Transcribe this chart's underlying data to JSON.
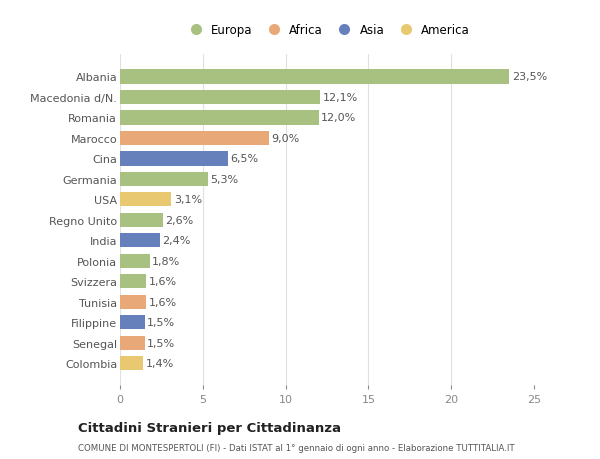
{
  "categories": [
    "Albania",
    "Macedonia d/N.",
    "Romania",
    "Marocco",
    "Cina",
    "Germania",
    "USA",
    "Regno Unito",
    "India",
    "Polonia",
    "Svizzera",
    "Tunisia",
    "Filippine",
    "Senegal",
    "Colombia"
  ],
  "values": [
    23.5,
    12.1,
    12.0,
    9.0,
    6.5,
    5.3,
    3.1,
    2.6,
    2.4,
    1.8,
    1.6,
    1.6,
    1.5,
    1.5,
    1.4
  ],
  "labels": [
    "23,5%",
    "12,1%",
    "12,0%",
    "9,0%",
    "6,5%",
    "5,3%",
    "3,1%",
    "2,6%",
    "2,4%",
    "1,8%",
    "1,6%",
    "1,6%",
    "1,5%",
    "1,5%",
    "1,4%"
  ],
  "continents": [
    "Europa",
    "Europa",
    "Europa",
    "Africa",
    "Asia",
    "Europa",
    "America",
    "Europa",
    "Asia",
    "Europa",
    "Europa",
    "Africa",
    "Asia",
    "Africa",
    "America"
  ],
  "continent_colors": {
    "Europa": "#a8c080",
    "Africa": "#e8a878",
    "Asia": "#6680bb",
    "America": "#e8c870"
  },
  "legend_order": [
    "Europa",
    "Africa",
    "Asia",
    "America"
  ],
  "title": "Cittadini Stranieri per Cittadinanza",
  "subtitle": "COMUNE DI MONTESPERTOLI (FI) - Dati ISTAT al 1° gennaio di ogni anno - Elaborazione TUTTITALIA.IT",
  "xlim": [
    0,
    25
  ],
  "xticks": [
    0,
    5,
    10,
    15,
    20,
    25
  ],
  "background_color": "#ffffff",
  "grid_color": "#e0e0e0",
  "bar_height": 0.7,
  "label_fontsize": 8,
  "ytick_fontsize": 8,
  "xtick_fontsize": 8
}
